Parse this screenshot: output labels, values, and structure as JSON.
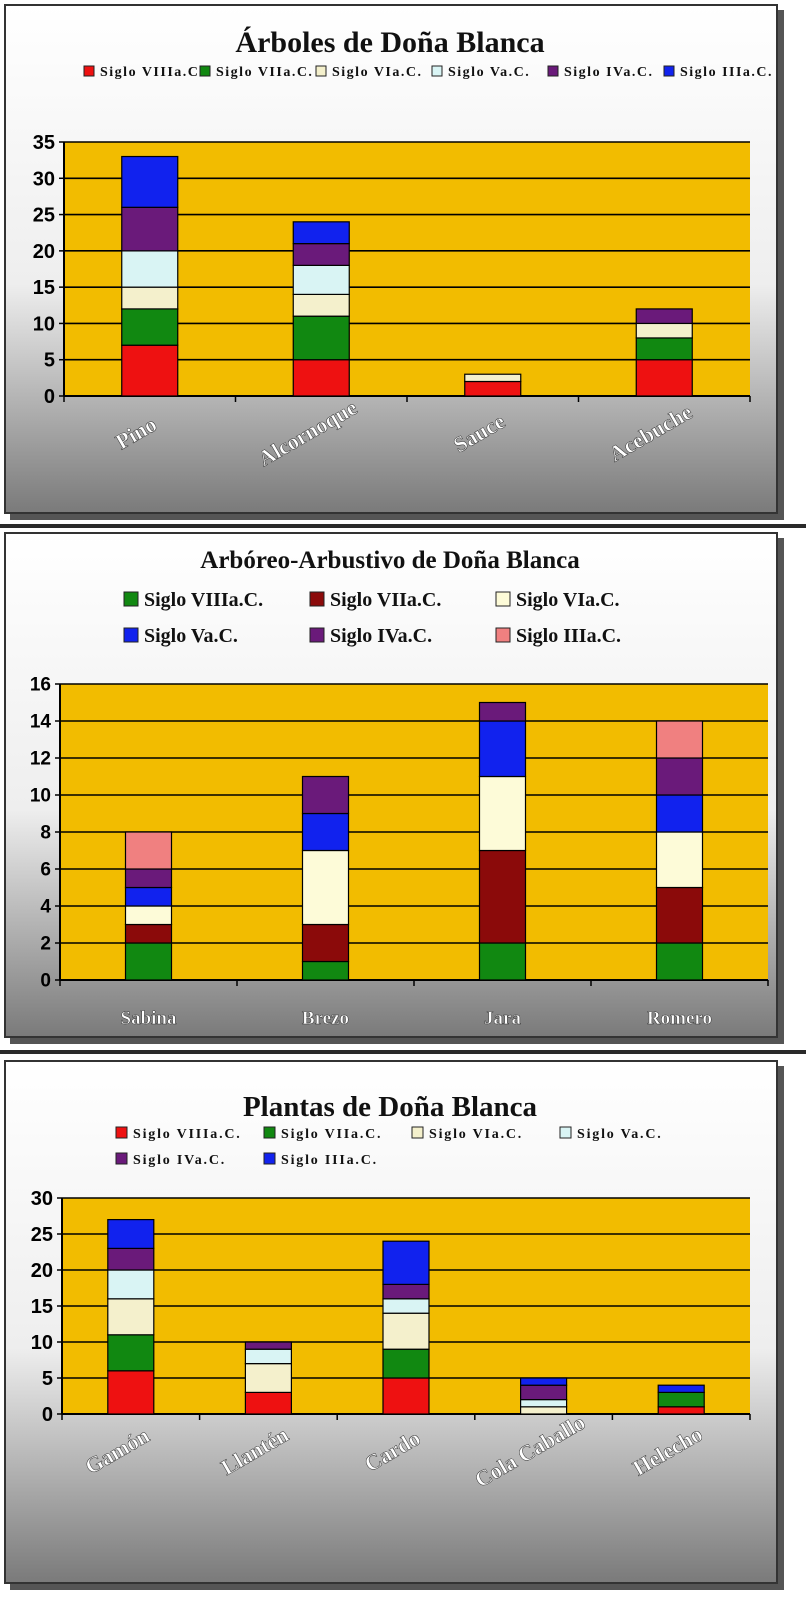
{
  "colors": {
    "plot_bg": "#f2bc00",
    "grid": "#000000",
    "panel_gradient_top": "#ffffff",
    "panel_gradient_bottom": "#7a7a7a"
  },
  "chart_data": [
    {
      "type": "bar",
      "stacked": true,
      "title": "Árboles  de Doña Blanca",
      "categories": [
        "Pino",
        "Alcornoque",
        "Sauce",
        "Acebuche"
      ],
      "ylim": [
        0,
        35
      ],
      "yticks": [
        0,
        5,
        10,
        15,
        20,
        25,
        30,
        35
      ],
      "grid": true,
      "legend_position": "top",
      "series": [
        {
          "name": "Siglo VIIIa.C.",
          "color": "#ee1111",
          "values": [
            7,
            5,
            2,
            5
          ]
        },
        {
          "name": "Siglo VIIa.C.",
          "color": "#118811",
          "values": [
            5,
            6,
            0,
            3
          ]
        },
        {
          "name": "Siglo VIa.C.",
          "color": "#f4f0cc",
          "values": [
            3,
            3,
            1,
            2
          ]
        },
        {
          "name": "Siglo Va.C.",
          "color": "#d9f4f4",
          "values": [
            5,
            4,
            0,
            0
          ]
        },
        {
          "name": "Siglo IVa.C.",
          "color": "#6a1a7a",
          "values": [
            6,
            3,
            0,
            2
          ]
        },
        {
          "name": "Siglo IIIa.C.",
          "color": "#1122ee",
          "values": [
            7,
            3,
            0,
            0
          ]
        }
      ]
    },
    {
      "type": "bar",
      "stacked": true,
      "title": "Arbóreo-Arbustivo de Doña Blanca",
      "categories": [
        "Sabina",
        "Brezo",
        "Jara",
        "Romero"
      ],
      "ylim": [
        0,
        16
      ],
      "yticks": [
        0,
        2,
        4,
        6,
        8,
        10,
        12,
        14,
        16
      ],
      "grid": true,
      "legend_position": "top",
      "series": [
        {
          "name": "Siglo VIIIa.C.",
          "color": "#118811",
          "values": [
            2,
            1,
            2,
            2
          ]
        },
        {
          "name": "Siglo VIIa.C.",
          "color": "#8b0a0a",
          "values": [
            1,
            2,
            5,
            3
          ]
        },
        {
          "name": "Siglo VIa.C.",
          "color": "#fdfbd8",
          "values": [
            1,
            4,
            4,
            3
          ]
        },
        {
          "name": "Siglo Va.C.",
          "color": "#1122ee",
          "values": [
            1,
            2,
            3,
            2
          ]
        },
        {
          "name": "Siglo IVa.C.",
          "color": "#6a1a7a",
          "values": [
            1,
            2,
            1,
            2
          ]
        },
        {
          "name": "Siglo IIIa.C.",
          "color": "#f08080",
          "values": [
            2,
            0,
            0,
            2
          ]
        }
      ]
    },
    {
      "type": "bar",
      "stacked": true,
      "title": "Plantas  de Doña Blanca",
      "categories": [
        "Gamón",
        "Llantén",
        "Cardo",
        "Cola Caballo",
        "Helecho"
      ],
      "ylim": [
        0,
        30
      ],
      "yticks": [
        0,
        5,
        10,
        15,
        20,
        25,
        30
      ],
      "grid": true,
      "legend_position": "top",
      "series": [
        {
          "name": "Siglo VIIIa.C.",
          "color": "#ee1111",
          "values": [
            6,
            3,
            5,
            0,
            1
          ]
        },
        {
          "name": "Siglo VIIa.C.",
          "color": "#118811",
          "values": [
            5,
            0,
            4,
            0,
            2
          ]
        },
        {
          "name": "Siglo VIa.C.",
          "color": "#f4f0cc",
          "values": [
            5,
            4,
            5,
            1,
            0
          ]
        },
        {
          "name": "Siglo Va.C.",
          "color": "#d9f4f4",
          "values": [
            4,
            2,
            2,
            1,
            0
          ]
        },
        {
          "name": "Siglo IVa.C.",
          "color": "#6a1a7a",
          "values": [
            3,
            1,
            2,
            2,
            0
          ]
        },
        {
          "name": "Siglo IIIa.C.",
          "color": "#1122ee",
          "values": [
            4,
            0,
            6,
            1,
            1
          ]
        }
      ]
    }
  ]
}
